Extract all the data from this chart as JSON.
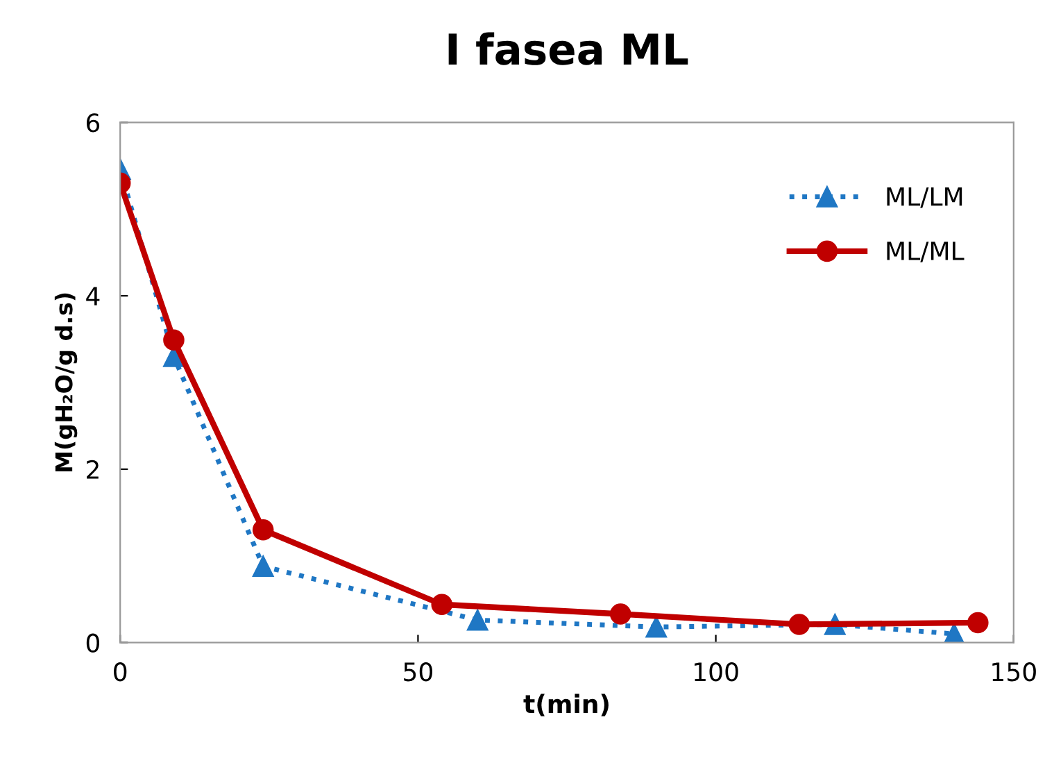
{
  "chart_data": {
    "type": "line",
    "title": "I fasea ML",
    "xlabel": "t(min)",
    "ylabel": "M(gH₂O/g d.s)",
    "xlim": [
      0,
      150
    ],
    "xticks": [
      0,
      50,
      100,
      150
    ],
    "ylim": [
      0,
      6
    ],
    "yticks": [
      0,
      2,
      4,
      6
    ],
    "grid": false,
    "legend": "top right",
    "series": [
      {
        "name": "ML/LM",
        "color": "#1f77c4",
        "marker": "triangle",
        "line_style": "dotted",
        "x": [
          0,
          9,
          24,
          60,
          90,
          120,
          140
        ],
        "values": [
          5.46,
          3.3,
          0.88,
          0.26,
          0.18,
          0.21,
          0.1
        ]
      },
      {
        "name": "ML/ML",
        "color": "#c00000",
        "marker": "circle",
        "line_style": "solid",
        "x": [
          0,
          9,
          24,
          54,
          84,
          114,
          144
        ],
        "values": [
          5.3,
          3.49,
          1.3,
          0.44,
          0.33,
          0.21,
          0.23
        ]
      }
    ]
  }
}
